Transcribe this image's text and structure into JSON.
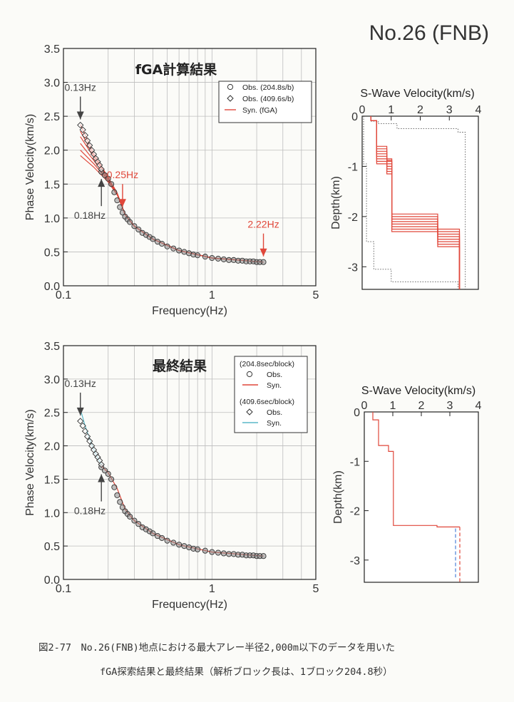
{
  "page": {
    "title": "No.26 (FNB)",
    "caption_line1": "図2-77　No.26(FNB)地点における最大アレー半径2,000m以下のデータを用いた",
    "caption_line2": "fGA探索結果と最終結果（解析ブロック長は、1ブロック204.8秒）"
  },
  "colors": {
    "syn": "#e0473a",
    "syn409": "#5ab8c8",
    "obs_edge": "#333333",
    "grid": "#bdbdbd",
    "annotation_red": "#e0473a",
    "annotation_gray": "#444444"
  },
  "chart_data": [
    {
      "id": "fga",
      "type": "scatter",
      "title": "fGA計算結果",
      "xlabel": "Frequency(Hz)",
      "ylabel": "Phase Velocity(km/s)",
      "xscale": "log",
      "xlim": [
        0.1,
        5
      ],
      "ylim": [
        0.0,
        3.5
      ],
      "xticks": [
        {
          "v": 0.1,
          "label": "0.1"
        },
        {
          "v": 1,
          "label": "1"
        },
        {
          "v": 5,
          "label": "5"
        }
      ],
      "yticks": [
        0.0,
        0.5,
        1.0,
        1.5,
        2.0,
        2.5,
        3.0,
        3.5
      ],
      "ytick_labels": [
        "0.0",
        "0.5",
        "1.0",
        "1.5",
        "2.0",
        "2.5",
        "3.0",
        "3.5"
      ],
      "legend": [
        {
          "marker": "circle",
          "label": "Obs. (204.8s/b)"
        },
        {
          "marker": "diamond",
          "label": "Obs. (409.6s/b)"
        },
        {
          "marker": "line",
          "label": "Syn. (fGA)"
        }
      ],
      "annotations": [
        {
          "text": "0.13Hz",
          "x": 0.13,
          "color": "gray",
          "direction": "down"
        },
        {
          "text": "0.18Hz",
          "x": 0.18,
          "color": "gray",
          "direction": "up"
        },
        {
          "text": "0.25Hz",
          "x": 0.25,
          "color": "red",
          "direction": "down"
        },
        {
          "text": "2.22Hz",
          "x": 2.22,
          "color": "red",
          "direction": "down"
        }
      ],
      "series": [
        {
          "marker": "circle",
          "x": [
            0.18,
            0.19,
            0.2,
            0.21,
            0.22,
            0.23,
            0.24,
            0.25,
            0.26,
            0.27,
            0.28,
            0.3,
            0.32,
            0.34,
            0.36,
            0.38,
            0.4,
            0.43,
            0.46,
            0.5,
            0.55,
            0.6,
            0.65,
            0.7,
            0.75,
            0.8,
            0.9,
            1.0,
            1.1,
            1.2,
            1.3,
            1.4,
            1.5,
            1.6,
            1.7,
            1.8,
            1.9,
            2.0,
            2.1,
            2.22
          ],
          "y": [
            1.68,
            1.63,
            1.58,
            1.5,
            1.38,
            1.26,
            1.16,
            1.08,
            1.02,
            0.98,
            0.94,
            0.88,
            0.83,
            0.78,
            0.75,
            0.72,
            0.69,
            0.65,
            0.62,
            0.58,
            0.55,
            0.52,
            0.5,
            0.48,
            0.46,
            0.45,
            0.43,
            0.41,
            0.4,
            0.39,
            0.38,
            0.38,
            0.37,
            0.37,
            0.36,
            0.36,
            0.36,
            0.35,
            0.35,
            0.35
          ]
        },
        {
          "marker": "diamond",
          "x": [
            0.13,
            0.135,
            0.14,
            0.145,
            0.15,
            0.155,
            0.16,
            0.165,
            0.17,
            0.175,
            0.18
          ],
          "y": [
            2.37,
            2.3,
            2.22,
            2.14,
            2.07,
            2.0,
            1.94,
            1.88,
            1.83,
            1.78,
            1.72
          ]
        },
        {
          "line": "syn",
          "curves": [
            {
              "x": [
                0.13,
                0.16,
                0.2,
                0.23,
                0.26,
                0.3,
                0.4,
                0.6,
                1.0,
                2.22
              ],
              "y": [
                2.38,
                1.95,
                1.6,
                1.36,
                1.05,
                0.88,
                0.69,
                0.52,
                0.41,
                0.35
              ]
            },
            {
              "x": [
                0.13,
                0.16,
                0.2,
                0.23,
                0.26,
                0.3,
                0.4,
                0.6,
                1.0,
                2.22
              ],
              "y": [
                2.2,
                1.9,
                1.58,
                1.36,
                1.05,
                0.88,
                0.69,
                0.52,
                0.41,
                0.35
              ]
            },
            {
              "x": [
                0.13,
                0.16,
                0.2,
                0.23,
                0.26,
                0.3,
                0.4,
                0.6,
                1.0,
                2.22
              ],
              "y": [
                2.1,
                1.85,
                1.56,
                1.36,
                1.05,
                0.88,
                0.69,
                0.52,
                0.41,
                0.35
              ]
            },
            {
              "x": [
                0.13,
                0.16,
                0.2,
                0.23,
                0.26,
                0.3,
                0.4,
                0.6,
                1.0,
                2.22
              ],
              "y": [
                2.0,
                1.8,
                1.55,
                1.35,
                1.05,
                0.88,
                0.69,
                0.52,
                0.41,
                0.35
              ]
            },
            {
              "x": [
                0.13,
                0.16,
                0.2,
                0.23,
                0.26,
                0.3,
                0.4,
                0.6,
                1.0,
                2.22
              ],
              "y": [
                1.92,
                1.75,
                1.53,
                1.34,
                1.05,
                0.88,
                0.69,
                0.52,
                0.41,
                0.35
              ]
            },
            {
              "x": [
                0.13,
                0.16,
                0.2,
                0.23,
                0.26,
                0.3,
                0.4,
                0.6,
                1.0,
                2.22
              ],
              "y": [
                2.28,
                1.92,
                1.6,
                1.37,
                1.05,
                0.88,
                0.69,
                0.52,
                0.41,
                0.35
              ]
            }
          ]
        }
      ]
    },
    {
      "id": "fga_vs",
      "type": "line",
      "title": "S-Wave Velocity(km/s)",
      "ylabel": "Depth(km)",
      "xlim": [
        0,
        4
      ],
      "ylim": [
        -3.45,
        0
      ],
      "xticks": [
        0,
        1,
        2,
        3,
        4
      ],
      "yticks": [
        0,
        -1,
        -2,
        -3
      ],
      "ytick_labels": [
        "0",
        "-1",
        "-2",
        "-3"
      ],
      "bounds": [
        {
          "x": [
            0.05,
            0.05,
            0.15,
            0.15,
            0.4,
            0.4,
            1.0,
            1.0,
            3.3,
            3.3
          ],
          "y": [
            0,
            -0.95,
            -0.95,
            -2.5,
            -2.5,
            -3.05,
            -3.05,
            -3.3,
            -3.3,
            -3.45
          ]
        },
        {
          "x": [
            0.3,
            0.3,
            0.55,
            0.55,
            1.2,
            1.2,
            3.3,
            3.3,
            3.55,
            3.55
          ],
          "y": [
            0,
            -0.1,
            -0.1,
            -0.15,
            -0.15,
            -0.25,
            -0.25,
            -0.32,
            -0.32,
            -3.45
          ]
        }
      ],
      "profiles": [
        {
          "x": [
            0.3,
            0.3,
            0.5,
            0.5,
            0.85,
            0.85,
            1.02,
            1.02,
            2.6,
            2.6,
            3.35,
            3.35
          ],
          "y": [
            0,
            -0.09,
            -0.09,
            -0.6,
            -0.6,
            -0.85,
            -0.85,
            -1.95,
            -1.95,
            -2.25,
            -2.25,
            -3.45
          ]
        },
        {
          "x": [
            0.3,
            0.3,
            0.5,
            0.5,
            0.85,
            0.85,
            1.02,
            1.02,
            2.6,
            2.6,
            3.35,
            3.35
          ],
          "y": [
            0,
            -0.09,
            -0.09,
            -0.65,
            -0.65,
            -0.88,
            -0.88,
            -2.0,
            -2.0,
            -2.3,
            -2.3,
            -3.45
          ]
        },
        {
          "x": [
            0.3,
            0.3,
            0.5,
            0.5,
            0.85,
            0.85,
            1.02,
            1.02,
            2.6,
            2.6,
            3.35,
            3.35
          ],
          "y": [
            0,
            -0.09,
            -0.09,
            -0.7,
            -0.7,
            -0.9,
            -0.9,
            -2.05,
            -2.05,
            -2.35,
            -2.35,
            -3.45
          ]
        },
        {
          "x": [
            0.3,
            0.3,
            0.5,
            0.5,
            0.85,
            0.85,
            1.02,
            1.02,
            2.6,
            2.6,
            3.35,
            3.35
          ],
          "y": [
            0,
            -0.09,
            -0.09,
            -0.75,
            -0.75,
            -0.95,
            -0.95,
            -2.1,
            -2.1,
            -2.4,
            -2.4,
            -3.45
          ]
        },
        {
          "x": [
            0.3,
            0.3,
            0.5,
            0.5,
            0.85,
            0.85,
            1.02,
            1.02,
            2.6,
            2.6,
            3.35,
            3.35
          ],
          "y": [
            0,
            -0.09,
            -0.09,
            -0.8,
            -0.8,
            -1.0,
            -1.0,
            -2.15,
            -2.15,
            -2.45,
            -2.45,
            -3.45
          ]
        },
        {
          "x": [
            0.3,
            0.3,
            0.5,
            0.5,
            0.85,
            0.85,
            1.02,
            1.02,
            2.6,
            2.6,
            3.35,
            3.35
          ],
          "y": [
            0,
            -0.09,
            -0.09,
            -0.85,
            -0.85,
            -1.05,
            -1.05,
            -2.2,
            -2.2,
            -2.5,
            -2.5,
            -3.45
          ]
        },
        {
          "x": [
            0.3,
            0.3,
            0.5,
            0.5,
            0.85,
            0.85,
            1.02,
            1.02,
            2.6,
            2.6,
            3.35,
            3.35
          ],
          "y": [
            0,
            -0.09,
            -0.09,
            -0.9,
            -0.9,
            -1.1,
            -1.1,
            -2.25,
            -2.25,
            -2.55,
            -2.55,
            -3.45
          ]
        },
        {
          "x": [
            0.3,
            0.3,
            0.5,
            0.5,
            0.85,
            0.85,
            1.02,
            1.02,
            2.6,
            2.6,
            3.35,
            3.35
          ],
          "y": [
            0,
            -0.09,
            -0.09,
            -0.95,
            -0.95,
            -1.15,
            -1.15,
            -2.3,
            -2.3,
            -2.6,
            -2.6,
            -3.45
          ]
        }
      ]
    },
    {
      "id": "final",
      "type": "scatter",
      "title": "最終結果",
      "xlabel": "Frequency(Hz)",
      "ylabel": "Phase Velocity(km/s)",
      "xscale": "log",
      "xlim": [
        0.1,
        5
      ],
      "ylim": [
        0.0,
        3.5
      ],
      "xticks": [
        {
          "v": 0.1,
          "label": "0.1"
        },
        {
          "v": 1,
          "label": "1"
        },
        {
          "v": 5,
          "label": "5"
        }
      ],
      "yticks": [
        0.0,
        0.5,
        1.0,
        1.5,
        2.0,
        2.5,
        3.0,
        3.5
      ],
      "ytick_labels": [
        "0.0",
        "0.5",
        "1.0",
        "1.5",
        "2.0",
        "2.5",
        "3.0",
        "3.5"
      ],
      "legend_groups": [
        {
          "title": "(204.8sec/block)",
          "items": [
            {
              "marker": "circle",
              "label": "Obs."
            },
            {
              "marker": "line-red",
              "label": "Syn."
            }
          ]
        },
        {
          "title": "(409.6sec/block)",
          "items": [
            {
              "marker": "diamond",
              "label": "Obs."
            },
            {
              "marker": "line-cyan",
              "label": "Syn."
            }
          ]
        }
      ],
      "annotations": [
        {
          "text": "0.13Hz",
          "x": 0.13,
          "color": "gray",
          "direction": "down"
        },
        {
          "text": "0.18Hz",
          "x": 0.18,
          "color": "gray",
          "direction": "up"
        }
      ],
      "series": [
        {
          "marker": "circle",
          "x": [
            0.18,
            0.19,
            0.2,
            0.21,
            0.22,
            0.23,
            0.24,
            0.25,
            0.26,
            0.27,
            0.28,
            0.3,
            0.32,
            0.34,
            0.36,
            0.38,
            0.4,
            0.43,
            0.46,
            0.5,
            0.55,
            0.6,
            0.65,
            0.7,
            0.75,
            0.8,
            0.9,
            1.0,
            1.1,
            1.2,
            1.3,
            1.4,
            1.5,
            1.6,
            1.7,
            1.8,
            1.9,
            2.0,
            2.1,
            2.22
          ],
          "y": [
            1.68,
            1.63,
            1.58,
            1.5,
            1.38,
            1.26,
            1.16,
            1.08,
            1.02,
            0.98,
            0.94,
            0.88,
            0.83,
            0.78,
            0.75,
            0.72,
            0.69,
            0.65,
            0.62,
            0.58,
            0.55,
            0.52,
            0.5,
            0.48,
            0.46,
            0.45,
            0.43,
            0.41,
            0.4,
            0.39,
            0.38,
            0.38,
            0.37,
            0.37,
            0.36,
            0.36,
            0.36,
            0.35,
            0.35,
            0.35
          ]
        },
        {
          "marker": "diamond",
          "x": [
            0.13,
            0.135,
            0.14,
            0.145,
            0.15,
            0.155,
            0.16,
            0.165,
            0.17,
            0.175,
            0.18
          ],
          "y": [
            2.37,
            2.3,
            2.22,
            2.14,
            2.07,
            2.0,
            1.94,
            1.88,
            1.83,
            1.78,
            1.72
          ]
        },
        {
          "line": "syn",
          "x": [
            0.18,
            0.2,
            0.23,
            0.26,
            0.3,
            0.4,
            0.6,
            1.0,
            2.22
          ],
          "y": [
            1.7,
            1.6,
            1.36,
            1.05,
            0.88,
            0.69,
            0.52,
            0.41,
            0.35
          ]
        },
        {
          "line": "syn409",
          "x": [
            0.13,
            0.14,
            0.15,
            0.16,
            0.17,
            0.18
          ],
          "y": [
            2.55,
            2.3,
            2.1,
            1.95,
            1.82,
            1.72
          ]
        }
      ]
    },
    {
      "id": "final_vs",
      "type": "line",
      "title": "S-Wave Velocity(km/s)",
      "ylabel": "Depth(km)",
      "xlim": [
        0,
        4
      ],
      "ylim": [
        -3.45,
        0
      ],
      "xticks": [
        0,
        1,
        2,
        3,
        4
      ],
      "yticks": [
        0,
        -1,
        -2,
        -3
      ],
      "ytick_labels": [
        "0",
        "-1",
        "-2",
        "-3"
      ],
      "profiles": [
        {
          "style": "solid",
          "x": [
            0.3,
            0.3,
            0.5,
            0.5,
            0.85,
            0.85,
            1.02,
            1.02,
            2.55,
            2.55,
            3.35
          ],
          "y": [
            0,
            -0.16,
            -0.16,
            -0.68,
            -0.68,
            -0.8,
            -0.8,
            -2.3,
            -2.3,
            -2.33,
            -2.33
          ]
        },
        {
          "style": "dashed",
          "x": [
            3.35,
            3.35
          ],
          "y": [
            -2.33,
            -3.45
          ]
        },
        {
          "style": "dashed-blue",
          "x": [
            3.2,
            3.2
          ],
          "y": [
            -2.36,
            -3.35
          ]
        }
      ]
    }
  ]
}
